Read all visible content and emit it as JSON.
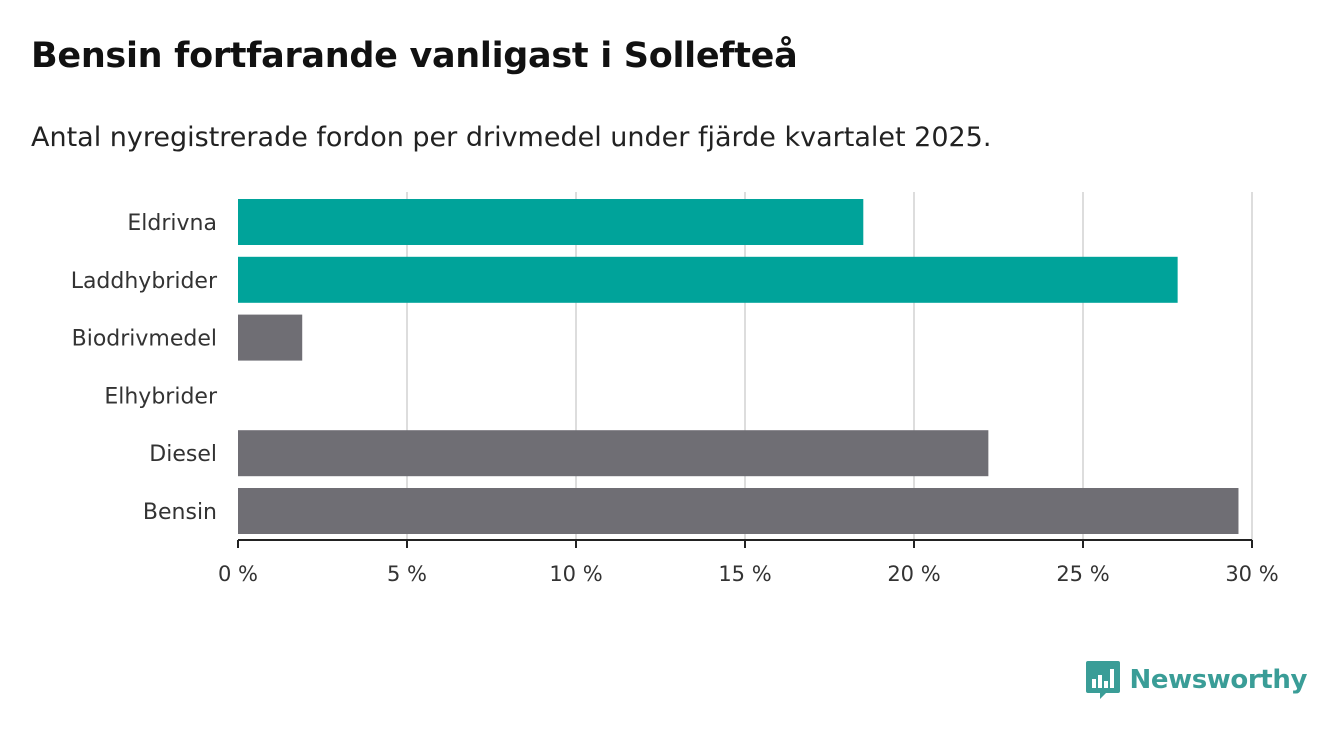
{
  "title": "Bensin fortfarande vanligast i Sollefteå",
  "subtitle": "Antal nyregistrerade fordon per drivmedel under fjärde kvartalet 2025.",
  "brand": {
    "name": "Newsworthy",
    "icon": "bar-chart-logo-icon",
    "color": "#3a9d97"
  },
  "colors": {
    "highlight": "#00a39a",
    "neutral": "#6f6e74",
    "grid": "#dddddd",
    "axis": "#222222"
  },
  "chart_data": {
    "type": "bar",
    "orientation": "horizontal",
    "title": "Bensin fortfarande vanligast i Sollefteå",
    "subtitle": "Antal nyregistrerade fordon per drivmedel under fjärde kvartalet 2025.",
    "xlabel": "",
    "ylabel": "",
    "unit": "%",
    "xlim": [
      0,
      30
    ],
    "ticks": [
      0,
      5,
      10,
      15,
      20,
      25,
      30
    ],
    "tick_labels": [
      "0 %",
      "5 %",
      "10 %",
      "15 %",
      "20 %",
      "25 %",
      "30 %"
    ],
    "grid": true,
    "categories": [
      "Eldrivna",
      "Laddhybrider",
      "Biodrivmedel",
      "Elhybrider",
      "Diesel",
      "Bensin"
    ],
    "values": [
      18.5,
      27.8,
      1.9,
      0,
      22.2,
      29.6
    ],
    "highlighted": [
      true,
      true,
      false,
      false,
      false,
      false
    ]
  }
}
